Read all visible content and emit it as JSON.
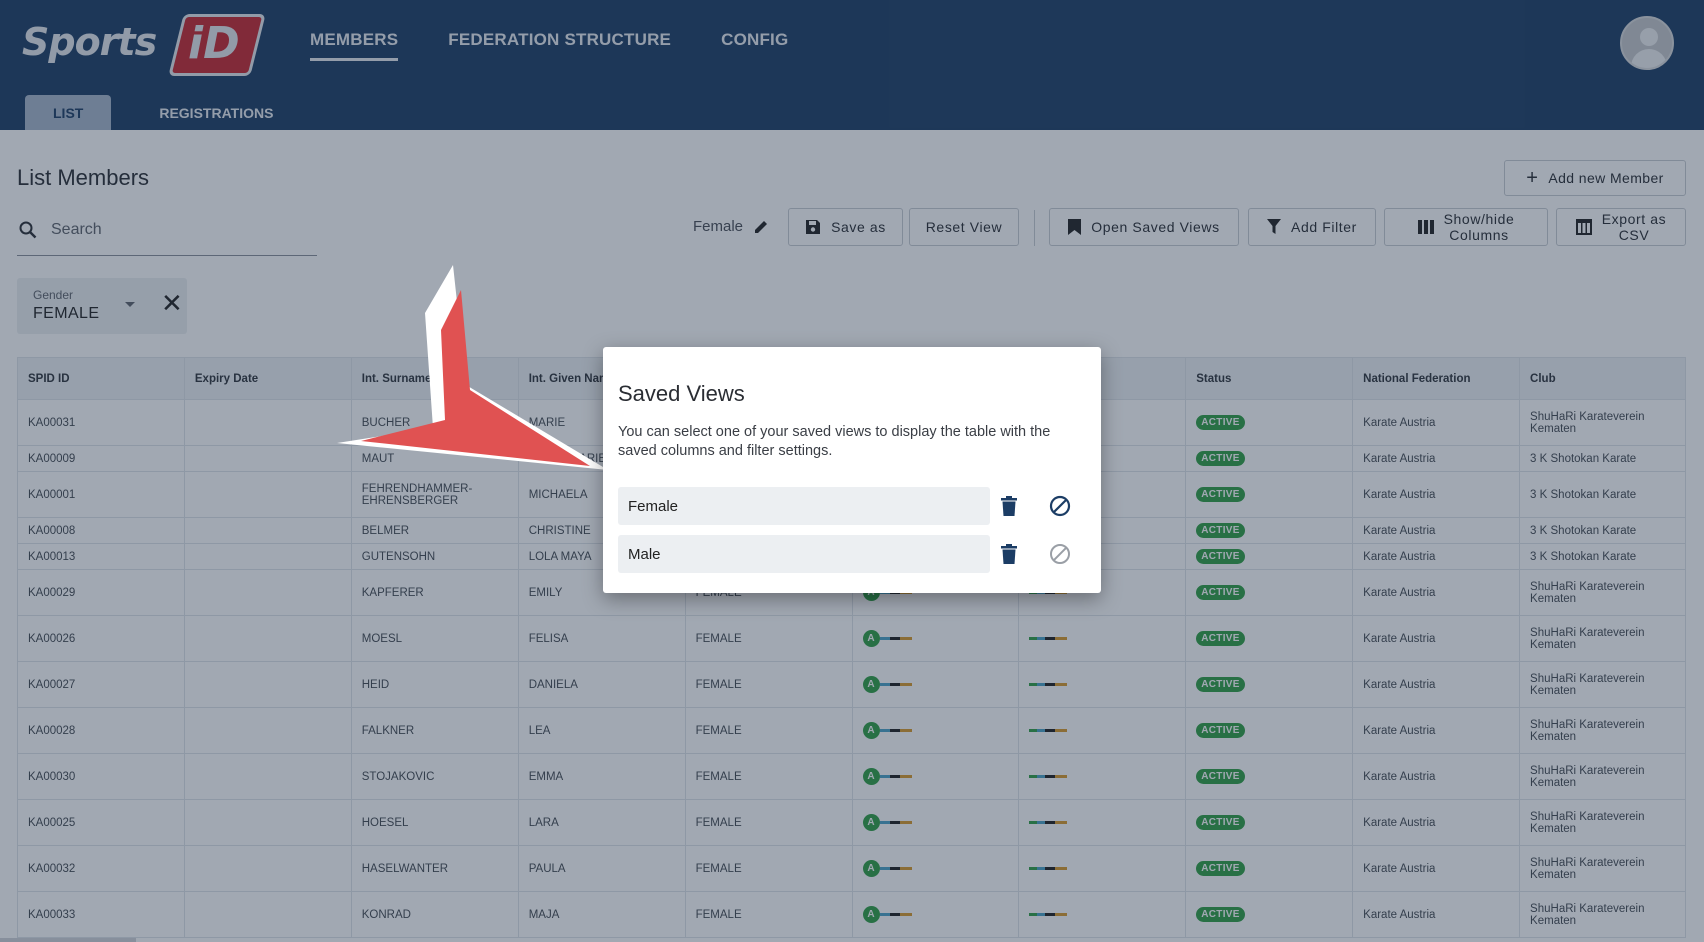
{
  "app": {
    "logo_text": "Sports",
    "logo_id": "iD",
    "nav": [
      "MEMBERS",
      "FEDERATION STRUCTURE",
      "CONFIG"
    ],
    "subtabs": [
      "LIST",
      "REGISTRATIONS"
    ]
  },
  "page": {
    "title": "List Members",
    "add_button": "Add new Member",
    "search_placeholder": "Search",
    "current_view": "Female",
    "toolbar": {
      "save_as": "Save as",
      "reset_view": "Reset View",
      "open_saved_views": "Open Saved Views",
      "add_filter": "Add Filter",
      "show_hide_1": "Show/hide",
      "show_hide_2": "Columns",
      "export_1": "Export as",
      "export_2": "CSV"
    },
    "filter": {
      "label": "Gender",
      "value": "FEMALE"
    }
  },
  "table": {
    "headers": [
      "SPID ID",
      "Expiry Date",
      "Int. Surname",
      "Int. Given Nam",
      "",
      "",
      "",
      "Status",
      "National Federation",
      "Club"
    ],
    "status_label": "ACTIVE",
    "grade_letter": "A",
    "federation": "Karate Austria",
    "rows": [
      {
        "id": "KA00031",
        "surname": "BUCHER",
        "surname2": "",
        "given": "MARIE",
        "gender": "",
        "club1": "ShuHaRi Karateverein",
        "club2": "Kematen"
      },
      {
        "id": "KA00009",
        "surname": "MAUT",
        "surname2": "",
        "given": "VIVIAN MARIE",
        "gender": "",
        "club1": "3 K Shotokan Karate",
        "club2": ""
      },
      {
        "id": "KA00001",
        "surname": "FEHRENDHAMMER-",
        "surname2": "EHRENSBERGER",
        "given": "MICHAELA",
        "gender": "",
        "club1": "3 K Shotokan Karate",
        "club2": ""
      },
      {
        "id": "KA00008",
        "surname": "BELMER",
        "surname2": "",
        "given": "CHRISTINE",
        "gender": "",
        "club1": "3 K Shotokan Karate",
        "club2": ""
      },
      {
        "id": "KA00013",
        "surname": "GUTENSOHN",
        "surname2": "",
        "given": "LOLA MAYA",
        "gender": "",
        "club1": "3 K Shotokan Karate",
        "club2": ""
      },
      {
        "id": "KA00029",
        "surname": "KAPFERER",
        "surname2": "",
        "given": "EMILY",
        "gender": "FEMALE",
        "club1": "ShuHaRi Karateverein",
        "club2": "Kematen"
      },
      {
        "id": "KA00026",
        "surname": "MOESL",
        "surname2": "",
        "given": "FELISA",
        "gender": "FEMALE",
        "club1": "ShuHaRi Karateverein",
        "club2": "Kematen"
      },
      {
        "id": "KA00027",
        "surname": "HEID",
        "surname2": "",
        "given": "DANIELA",
        "gender": "FEMALE",
        "club1": "ShuHaRi Karateverein",
        "club2": "Kematen"
      },
      {
        "id": "KA00028",
        "surname": "FALKNER",
        "surname2": "",
        "given": "LEA",
        "gender": "FEMALE",
        "club1": "ShuHaRi Karateverein",
        "club2": "Kematen"
      },
      {
        "id": "KA00030",
        "surname": "STOJAKOVIC",
        "surname2": "",
        "given": "EMMA",
        "gender": "FEMALE",
        "club1": "ShuHaRi Karateverein",
        "club2": "Kematen"
      },
      {
        "id": "KA00025",
        "surname": "HOESEL",
        "surname2": "",
        "given": "LARA",
        "gender": "FEMALE",
        "club1": "ShuHaRi Karateverein",
        "club2": "Kematen"
      },
      {
        "id": "KA00032",
        "surname": "HASELWANTER",
        "surname2": "",
        "given": "PAULA",
        "gender": "FEMALE",
        "club1": "ShuHaRi Karateverein",
        "club2": "Kematen"
      },
      {
        "id": "KA00033",
        "surname": "KONRAD",
        "surname2": "",
        "given": "MAJA",
        "gender": "FEMALE",
        "club1": "ShuHaRi Karateverein",
        "club2": "Kematen"
      }
    ]
  },
  "modal": {
    "title": "Saved Views",
    "description": "You can select one of your saved views to display the table with the saved columns and filter settings.",
    "views": [
      "Female",
      "Male"
    ]
  },
  "colors": {
    "header_bg": "#1c3d65",
    "accent_red": "#c8262f",
    "status_green": "#2f9f44",
    "arrow_red": "#e05252"
  }
}
